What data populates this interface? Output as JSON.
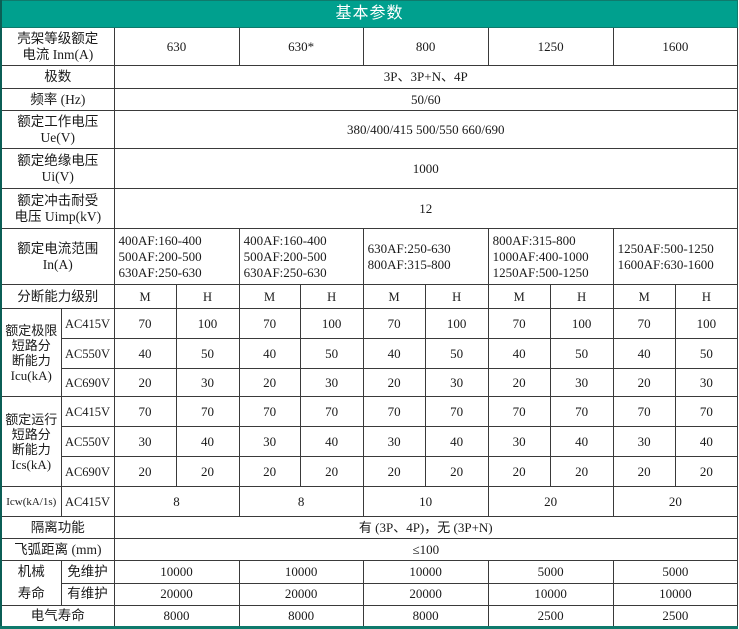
{
  "title": "基本参数",
  "frame_row": {
    "label": [
      "壳架等级额定",
      "电流 Inm(A)"
    ],
    "values": [
      "630",
      "630*",
      "800",
      "1250",
      "1600"
    ]
  },
  "common_rows": [
    {
      "label": [
        "极数"
      ],
      "value": "3P、3P+N、4P"
    },
    {
      "label": [
        "频率 (Hz)"
      ],
      "value": "50/60"
    },
    {
      "label": [
        "额定工作电压",
        "Ue(V)"
      ],
      "value": "380/400/415    500/550    660/690"
    },
    {
      "label": [
        "额定绝缘电压",
        "Ui(V)"
      ],
      "value": "1000"
    },
    {
      "label": [
        "额定冲击耐受",
        "电压 Uimp(kV)"
      ],
      "value": "12"
    }
  ],
  "current_range": {
    "label": [
      "额定电流范围",
      "In(A)"
    ],
    "values": [
      [
        "400AF:160-400",
        "500AF:200-500",
        "630AF:250-630"
      ],
      [
        "400AF:160-400",
        "500AF:200-500",
        "630AF:250-630"
      ],
      [
        "630AF:250-630",
        "800AF:315-800"
      ],
      [
        "800AF:315-800",
        "1000AF:400-1000",
        "1250AF:500-1250"
      ],
      [
        "1250AF:500-1250",
        "1600AF:630-1600"
      ]
    ]
  },
  "breaking_class": {
    "label": "分断能力级别",
    "grades": [
      "M",
      "H"
    ]
  },
  "icu": {
    "label": [
      "额定极限",
      "短路分",
      "断能力",
      "Icu(kA)"
    ],
    "rows": [
      {
        "voltage": "AC415V",
        "values": [
          "70",
          "100",
          "70",
          "100",
          "70",
          "100",
          "70",
          "100",
          "70",
          "100"
        ]
      },
      {
        "voltage": "AC550V",
        "values": [
          "40",
          "50",
          "40",
          "50",
          "40",
          "50",
          "40",
          "50",
          "40",
          "50"
        ]
      },
      {
        "voltage": "AC690V",
        "values": [
          "20",
          "30",
          "20",
          "30",
          "20",
          "30",
          "20",
          "30",
          "20",
          "30"
        ]
      }
    ]
  },
  "ics": {
    "label": [
      "额定运行",
      "短路分",
      "断能力",
      "Ics(kA)"
    ],
    "rows": [
      {
        "voltage": "AC415V",
        "values": [
          "70",
          "70",
          "70",
          "70",
          "70",
          "70",
          "70",
          "70",
          "70",
          "70"
        ]
      },
      {
        "voltage": "AC550V",
        "values": [
          "30",
          "40",
          "30",
          "40",
          "30",
          "40",
          "30",
          "40",
          "30",
          "40"
        ]
      },
      {
        "voltage": "AC690V",
        "values": [
          "20",
          "20",
          "20",
          "20",
          "20",
          "20",
          "20",
          "20",
          "20",
          "20"
        ]
      }
    ]
  },
  "icw": {
    "label": "Icw(kA/1s)",
    "voltage": "AC415V",
    "values": [
      "8",
      "8",
      "10",
      "20",
      "20"
    ]
  },
  "isolation": {
    "label": "隔离功能",
    "value": "有 (3P、4P)，无 (3P+N)"
  },
  "arc": {
    "label": "飞弧距离 (mm)",
    "value": "≤100"
  },
  "mech": {
    "label": [
      "机械",
      "寿命"
    ],
    "rows": [
      {
        "type": "免维护",
        "values": [
          "10000",
          "10000",
          "10000",
          "5000",
          "5000"
        ]
      },
      {
        "type": "有维护",
        "values": [
          "20000",
          "20000",
          "20000",
          "10000",
          "10000"
        ]
      }
    ]
  },
  "elec": {
    "label": "电气寿命",
    "values": [
      "8000",
      "8000",
      "8000",
      "2500",
      "2500"
    ]
  }
}
